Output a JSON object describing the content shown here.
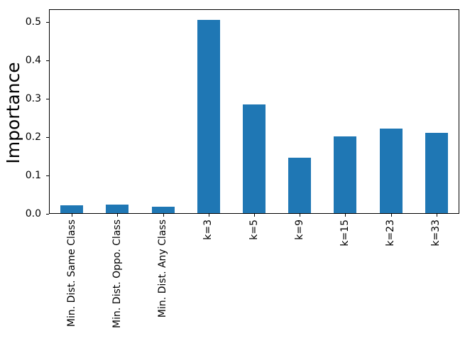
{
  "chart_data": {
    "type": "bar",
    "categories": [
      "Min. Dist. Same Class",
      "Min. Dist. Oppo. Class",
      "Min. Dist. Any Class",
      "k=3",
      "k=5",
      "k=9",
      "k=15",
      "k=23",
      "k=33"
    ],
    "values": [
      0.022,
      0.024,
      0.019,
      0.505,
      0.285,
      0.146,
      0.202,
      0.222,
      0.211
    ],
    "title": "",
    "xlabel": "",
    "ylabel": "Importance",
    "ylim": [
      0,
      0.533
    ],
    "yticks": [
      0.0,
      0.1,
      0.2,
      0.3,
      0.4,
      0.5
    ],
    "ytick_labels": [
      "0.0",
      "0.1",
      "0.2",
      "0.3",
      "0.4",
      "0.5"
    ],
    "xtick_rotation": 90,
    "bar_width_fraction": 0.5,
    "grid": false,
    "legend": null,
    "colors": {
      "bar": "#1f77b4",
      "axis": "#000000",
      "text": "#000000",
      "background": "#ffffff"
    }
  }
}
